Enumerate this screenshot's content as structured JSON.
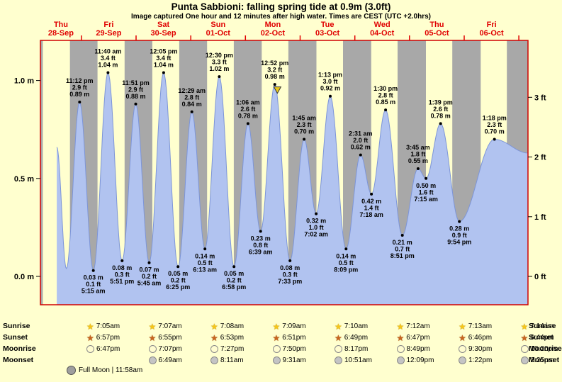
{
  "title": "Punta Sabbioni: falling  spring tide at 0.9m (3.0ft)",
  "subtitle": "Image captured One hour and 12 minutes after high water. Times are CEST (UTC +2.0hrs)",
  "full_moon": "Full Moon | 11:58am",
  "colors": {
    "background": "#ffffcf",
    "night_band": "#a8a8a8",
    "tide_fill": "#b1c3f0",
    "tide_line": "#7d95d8",
    "border": "#d00000",
    "day_label": "#e00000",
    "marker": "#e8c81e"
  },
  "days": [
    {
      "weekday": "Thu",
      "date": "28-Sep"
    },
    {
      "weekday": "Fri",
      "date": "29-Sep"
    },
    {
      "weekday": "Sat",
      "date": "30-Sep"
    },
    {
      "weekday": "Sun",
      "date": "01-Oct"
    },
    {
      "weekday": "Mon",
      "date": "02-Oct"
    },
    {
      "weekday": "Tue",
      "date": "03-Oct"
    },
    {
      "weekday": "Wed",
      "date": "04-Oct"
    },
    {
      "weekday": "Thu",
      "date": "05-Oct"
    },
    {
      "weekday": "Fri",
      "date": "06-Oct"
    }
  ],
  "chart_data": {
    "type": "area",
    "title": "Punta Sabbioni tide curve",
    "ylabel_left": "m",
    "ylabel_right": "ft",
    "t_range": [
      6,
      220
    ],
    "y_axis_m": [
      {
        "label": "0.0 m",
        "v": 0
      },
      {
        "label": "0.5 m",
        "v": 0.5
      },
      {
        "label": "1.0 m",
        "v": 1
      }
    ],
    "y_axis_ft": [
      {
        "label": "0 ft",
        "v_ft": 0
      },
      {
        "label": "1 ft",
        "v_ft": 1
      },
      {
        "label": "2 ft",
        "v_ft": 2
      },
      {
        "label": "3 ft",
        "v_ft": 3
      }
    ],
    "night_bands": [
      [
        6,
        7.07
      ],
      [
        18.98,
        31.08
      ],
      [
        42.95,
        55.12
      ],
      [
        66.92,
        79.13
      ],
      [
        90.88,
        103.15
      ],
      [
        114.85,
        127.17
      ],
      [
        138.82,
        151.2
      ],
      [
        162.78,
        175.22
      ],
      [
        186.77,
        199.23
      ],
      [
        210.73,
        220
      ]
    ],
    "lead_in": [
      {
        "t": 13.2,
        "v": 0.66
      },
      {
        "t": 17.4,
        "v": 0.04
      }
    ],
    "lead_out": [
      {
        "t": 220,
        "v": 0.63
      }
    ],
    "current_marker": {
      "t": 110.0,
      "v": 0.935
    },
    "points": [
      {
        "kind": "high",
        "t": 23.2,
        "v": 0.89,
        "time": "11:12 pm",
        "ft": "2.9 ft",
        "m": "0.89 m"
      },
      {
        "kind": "low",
        "t": 29.25,
        "v": 0.03,
        "time": "5:15 am",
        "ft": "0.1 ft",
        "m": "0.03 m"
      },
      {
        "kind": "high",
        "t": 35.67,
        "v": 1.04,
        "time": "11:40 am",
        "ft": "3.4 ft",
        "m": "1.04 m"
      },
      {
        "kind": "low",
        "t": 41.85,
        "v": 0.08,
        "time": "5:51 pm",
        "ft": "0.3 ft",
        "m": "0.08 m"
      },
      {
        "kind": "high",
        "t": 47.85,
        "v": 0.88,
        "time": "11:51 pm",
        "ft": "2.9 ft",
        "m": "0.88 m"
      },
      {
        "kind": "low",
        "t": 53.75,
        "v": 0.07,
        "time": "5:45 am",
        "ft": "0.2 ft",
        "m": "0.07 m"
      },
      {
        "kind": "high",
        "t": 60.08,
        "v": 1.04,
        "time": "12:05 pm",
        "ft": "3.4 ft",
        "m": "1.04 m"
      },
      {
        "kind": "low",
        "t": 66.42,
        "v": 0.05,
        "time": "6:25 pm",
        "ft": "0.2 ft",
        "m": "0.05 m"
      },
      {
        "kind": "high",
        "t": 72.48,
        "v": 0.84,
        "time": "12:29 am",
        "ft": "2.8 ft",
        "m": "0.84 m"
      },
      {
        "kind": "low",
        "t": 78.22,
        "v": 0.14,
        "time": "6:13 am",
        "ft": "0.5 ft",
        "m": "0.14 m"
      },
      {
        "kind": "high",
        "t": 84.5,
        "v": 1.02,
        "time": "12:30 pm",
        "ft": "3.3 ft",
        "m": "1.02 m"
      },
      {
        "kind": "low",
        "t": 90.97,
        "v": 0.05,
        "time": "6:58 pm",
        "ft": "0.2 ft",
        "m": "0.05 m"
      },
      {
        "kind": "high",
        "t": 97.1,
        "v": 0.78,
        "time": "1:06 am",
        "ft": "2.6 ft",
        "m": "0.78 m"
      },
      {
        "kind": "low",
        "t": 102.65,
        "v": 0.23,
        "time": "6:39 am",
        "ft": "0.8 ft",
        "m": "0.23 m"
      },
      {
        "kind": "high",
        "t": 108.87,
        "v": 0.98,
        "time": "12:52 pm",
        "ft": "3.2 ft",
        "m": "0.98 m"
      },
      {
        "kind": "low",
        "t": 115.55,
        "v": 0.08,
        "time": "7:33 pm",
        "ft": "0.3 ft",
        "m": "0.08 m"
      },
      {
        "kind": "high",
        "t": 121.75,
        "v": 0.7,
        "time": "1:45 am",
        "ft": "2.3 ft",
        "m": "0.70 m"
      },
      {
        "kind": "low",
        "t": 127.03,
        "v": 0.32,
        "time": "7:02 am",
        "ft": "1.0 ft",
        "m": "0.32 m"
      },
      {
        "kind": "high",
        "t": 133.22,
        "v": 0.92,
        "time": "1:13 pm",
        "ft": "3.0 ft",
        "m": "0.92 m"
      },
      {
        "kind": "low",
        "t": 140.15,
        "v": 0.14,
        "time": "8:09 pm",
        "ft": "0.5 ft",
        "m": "0.14 m"
      },
      {
        "kind": "high",
        "t": 146.52,
        "v": 0.62,
        "time": "2:31 am",
        "ft": "2.0 ft",
        "m": "0.62 m"
      },
      {
        "kind": "low",
        "t": 151.3,
        "v": 0.42,
        "time": "7:18 am",
        "ft": "1.4 ft",
        "m": "0.42 m"
      },
      {
        "kind": "high",
        "t": 157.5,
        "v": 0.85,
        "time": "1:30 pm",
        "ft": "2.8 ft",
        "m": "0.85 m"
      },
      {
        "kind": "low",
        "t": 164.85,
        "v": 0.21,
        "time": "8:51 pm",
        "ft": "0.7 ft",
        "m": "0.21 m"
      },
      {
        "kind": "high",
        "t": 171.75,
        "v": 0.55,
        "time": "3:45 am",
        "ft": "1.8 ft",
        "m": "0.55 m"
      },
      {
        "kind": "low",
        "t": 175.25,
        "v": 0.5,
        "time": "7:15 am",
        "ft": "1.6 ft",
        "m": "0.50 m"
      },
      {
        "kind": "high",
        "t": 181.65,
        "v": 0.78,
        "time": "1:39 pm",
        "ft": "2.6 ft",
        "m": "0.78 m"
      },
      {
        "kind": "low",
        "t": 189.9,
        "v": 0.28,
        "time": "9:54 pm",
        "ft": "0.9 ft",
        "m": "0.28 m"
      },
      {
        "kind": "high",
        "t": 205.3,
        "v": 0.7,
        "time": "1:18 pm",
        "ft": "2.3 ft",
        "m": "0.70 m"
      }
    ]
  },
  "astro": {
    "rows": [
      {
        "name": "Sunrise",
        "icon": "sunrise-star",
        "start_col": 0,
        "times": [
          "7:05am",
          "7:07am",
          "7:08am",
          "7:09am",
          "7:10am",
          "7:12am",
          "7:13am",
          "7:14am"
        ]
      },
      {
        "name": "Sunset",
        "icon": "sunset-star",
        "start_col": 0,
        "times": [
          "6:57pm",
          "6:55pm",
          "6:53pm",
          "6:51pm",
          "6:49pm",
          "6:47pm",
          "6:46pm",
          "6:44pm"
        ]
      },
      {
        "name": "Moonrise",
        "icon": "moonrise-circle",
        "start_col": 0,
        "times": [
          "6:47pm",
          "7:07pm",
          "7:27pm",
          "7:50pm",
          "8:17pm",
          "8:49pm",
          "9:30pm",
          "10:20pm"
        ]
      },
      {
        "name": "Moonset",
        "icon": "moonset-circle",
        "start_col": 1,
        "times": [
          "6:49am",
          "8:11am",
          "9:31am",
          "10:51am",
          "12:09pm",
          "1:22pm",
          "2:25pm"
        ]
      }
    ]
  }
}
